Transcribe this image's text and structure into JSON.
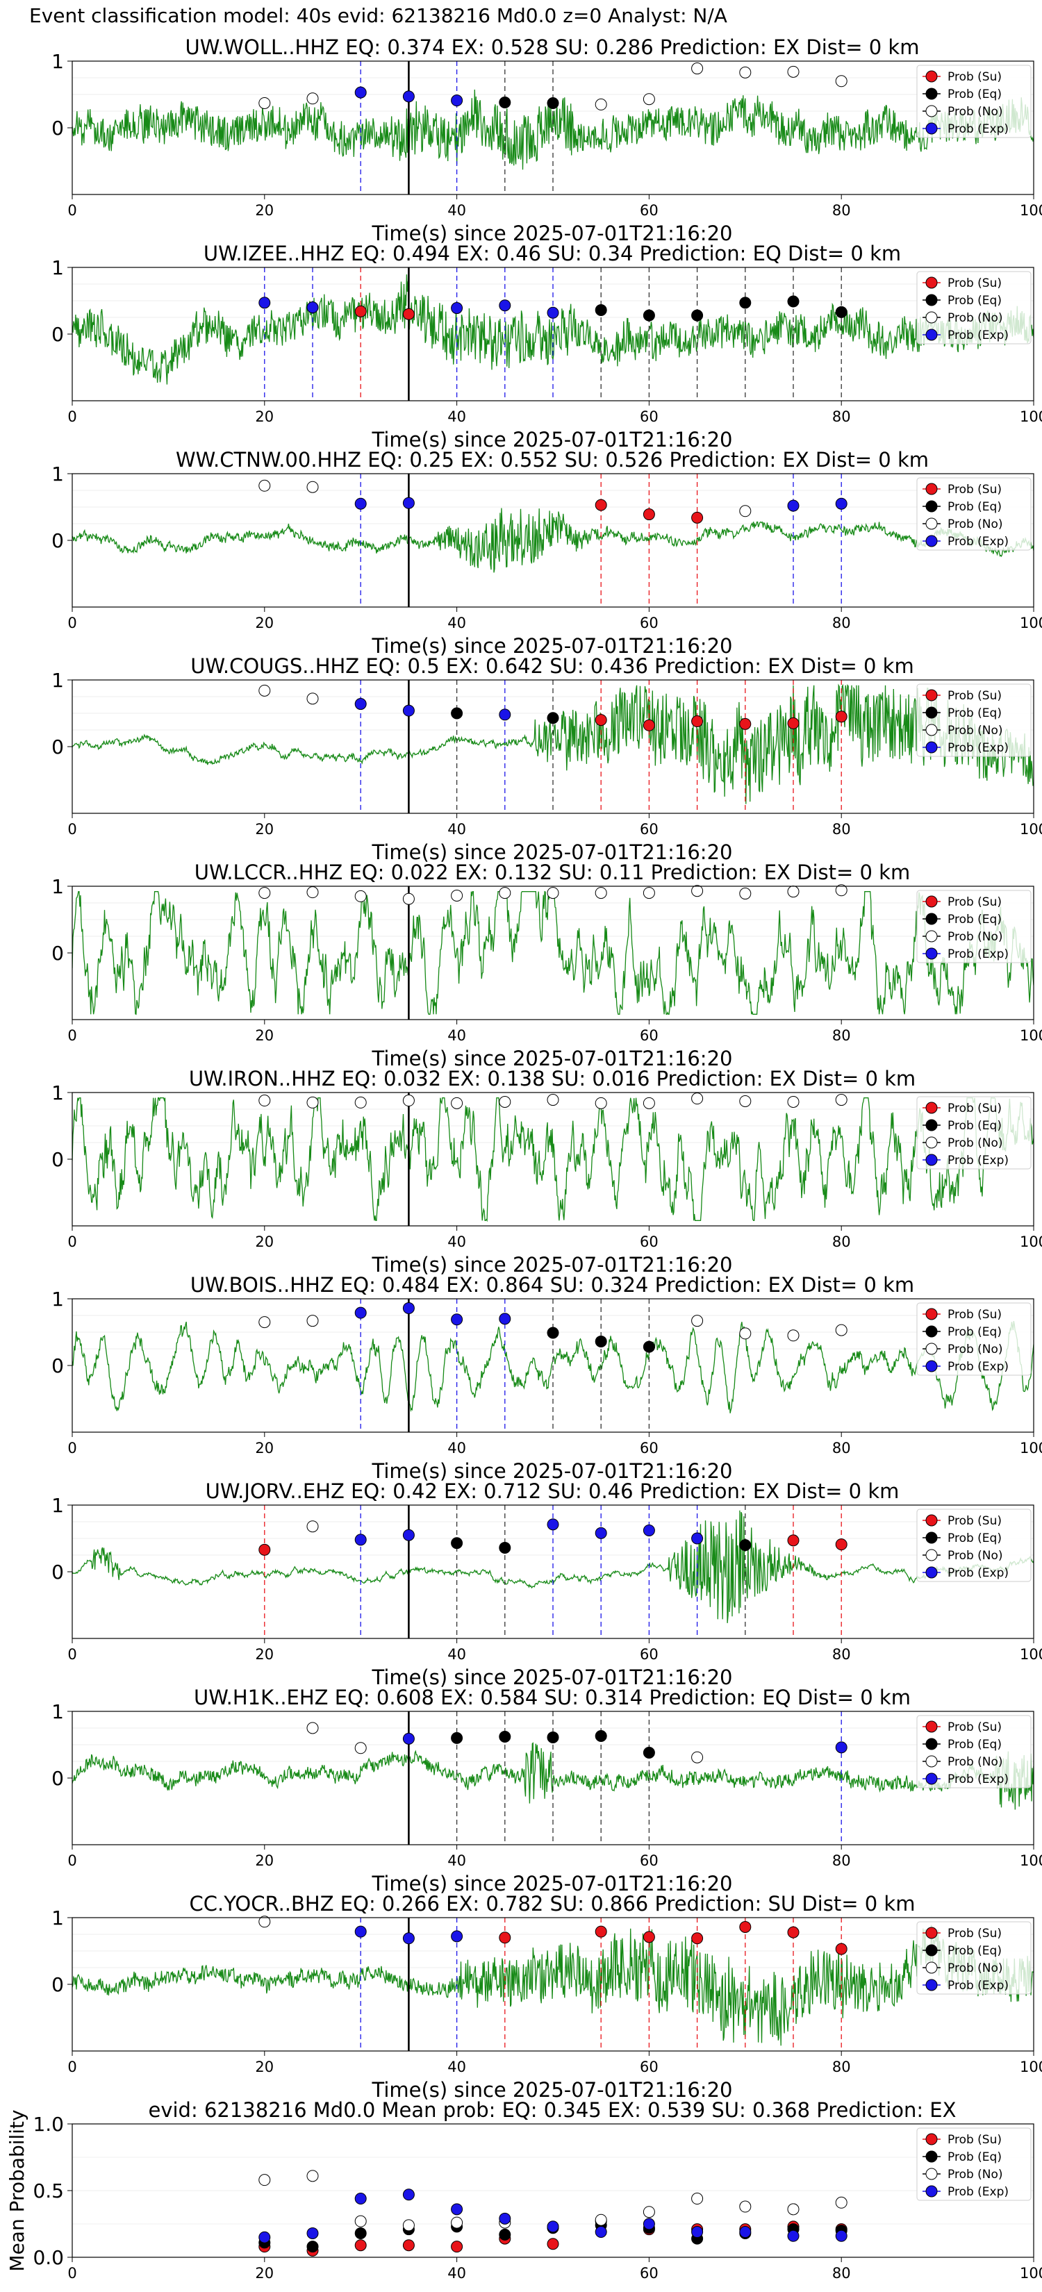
{
  "figure": {
    "suptitle": "Event classification model: 40s evid: 62138216 Md0.0 z=0 Analyst: N/A",
    "xlabel": "Time(s) since 2025-07-01T21:16:20",
    "legend": [
      "Prob (Su)",
      "Prob (Eq)",
      "Prob (No)",
      "Prob (Exp)"
    ],
    "colors": {
      "su": "#e8141a",
      "eq": "#000000",
      "no": "#ffffff",
      "exp": "#1a14e8",
      "waveform": "#178a17"
    }
  },
  "chart_data": [
    {
      "type": "line",
      "station": "UW.WOLL..HHZ",
      "title": "UW.WOLL..HHZ   EQ: 0.374  EX: 0.528  SU: 0.286   Prediction: EX    Dist= 0 km",
      "xlim": [
        0,
        100
      ],
      "ylim": [
        -1,
        1
      ],
      "xticks": [
        0,
        20,
        40,
        60,
        80,
        100
      ],
      "yticks": [
        0,
        1
      ],
      "event_line": 35,
      "waveform_style": "noisy",
      "points": [
        {
          "x": 20,
          "y": 0.37,
          "cls": "no"
        },
        {
          "x": 25,
          "y": 0.44,
          "cls": "no"
        },
        {
          "x": 30,
          "y": 0.53,
          "cls": "exp"
        },
        {
          "x": 35,
          "y": 0.47,
          "cls": "exp"
        },
        {
          "x": 40,
          "y": 0.41,
          "cls": "exp"
        },
        {
          "x": 45,
          "y": 0.38,
          "cls": "eq"
        },
        {
          "x": 50,
          "y": 0.37,
          "cls": "eq"
        },
        {
          "x": 55,
          "y": 0.35,
          "cls": "no"
        },
        {
          "x": 60,
          "y": 0.43,
          "cls": "no"
        },
        {
          "x": 65,
          "y": 0.89,
          "cls": "no"
        },
        {
          "x": 70,
          "y": 0.83,
          "cls": "no"
        },
        {
          "x": 75,
          "y": 0.84,
          "cls": "no"
        },
        {
          "x": 80,
          "y": 0.7,
          "cls": "no"
        }
      ]
    },
    {
      "type": "line",
      "station": "UW.IZEE..HHZ",
      "title": "UW.IZEE..HHZ   EQ: 0.494  EX: 0.46  SU: 0.34   Prediction: EQ    Dist= 0 km",
      "xlim": [
        0,
        100
      ],
      "ylim": [
        -1,
        1
      ],
      "xticks": [
        0,
        20,
        40,
        60,
        80,
        100
      ],
      "yticks": [
        0,
        1
      ],
      "event_line": 35,
      "waveform_style": "noisy",
      "points": [
        {
          "x": 20,
          "y": 0.47,
          "cls": "exp"
        },
        {
          "x": 25,
          "y": 0.4,
          "cls": "exp"
        },
        {
          "x": 30,
          "y": 0.34,
          "cls": "su"
        },
        {
          "x": 35,
          "y": 0.3,
          "cls": "su"
        },
        {
          "x": 40,
          "y": 0.39,
          "cls": "exp"
        },
        {
          "x": 45,
          "y": 0.43,
          "cls": "exp"
        },
        {
          "x": 50,
          "y": 0.32,
          "cls": "exp"
        },
        {
          "x": 55,
          "y": 0.36,
          "cls": "eq"
        },
        {
          "x": 60,
          "y": 0.28,
          "cls": "eq"
        },
        {
          "x": 65,
          "y": 0.28,
          "cls": "eq"
        },
        {
          "x": 70,
          "y": 0.47,
          "cls": "eq"
        },
        {
          "x": 75,
          "y": 0.49,
          "cls": "eq"
        },
        {
          "x": 80,
          "y": 0.33,
          "cls": "eq"
        }
      ]
    },
    {
      "type": "line",
      "station": "WW.CTNW.00.HHZ",
      "title": "WW.CTNW.00.HHZ   EQ: 0.25  EX: 0.552  SU: 0.526   Prediction: EX    Dist= 0 km",
      "xlim": [
        0,
        100
      ],
      "ylim": [
        -1,
        1
      ],
      "xticks": [
        0,
        20,
        40,
        60,
        80,
        100
      ],
      "yticks": [
        0,
        1
      ],
      "event_line": 35,
      "waveform_style": "quiet",
      "points": [
        {
          "x": 20,
          "y": 0.82,
          "cls": "no"
        },
        {
          "x": 25,
          "y": 0.8,
          "cls": "no"
        },
        {
          "x": 30,
          "y": 0.55,
          "cls": "exp"
        },
        {
          "x": 35,
          "y": 0.56,
          "cls": "exp"
        },
        {
          "x": 55,
          "y": 0.53,
          "cls": "su"
        },
        {
          "x": 60,
          "y": 0.39,
          "cls": "su"
        },
        {
          "x": 65,
          "y": 0.34,
          "cls": "su"
        },
        {
          "x": 70,
          "y": 0.44,
          "cls": "no"
        },
        {
          "x": 75,
          "y": 0.52,
          "cls": "exp"
        },
        {
          "x": 80,
          "y": 0.55,
          "cls": "exp"
        }
      ]
    },
    {
      "type": "line",
      "station": "UW.COUGS..HHZ",
      "title": "UW.COUGS..HHZ   EQ: 0.5  EX: 0.642  SU: 0.436   Prediction: EX    Dist= 0 km",
      "xlim": [
        0,
        100
      ],
      "ylim": [
        -1,
        1
      ],
      "xticks": [
        0,
        20,
        40,
        60,
        80,
        100
      ],
      "yticks": [
        0,
        1
      ],
      "event_line": 35,
      "waveform_style": "burst-late",
      "points": [
        {
          "x": 20,
          "y": 0.84,
          "cls": "no"
        },
        {
          "x": 25,
          "y": 0.72,
          "cls": "no"
        },
        {
          "x": 30,
          "y": 0.64,
          "cls": "exp"
        },
        {
          "x": 35,
          "y": 0.54,
          "cls": "exp"
        },
        {
          "x": 40,
          "y": 0.5,
          "cls": "eq"
        },
        {
          "x": 45,
          "y": 0.48,
          "cls": "exp"
        },
        {
          "x": 50,
          "y": 0.43,
          "cls": "eq"
        },
        {
          "x": 55,
          "y": 0.4,
          "cls": "su"
        },
        {
          "x": 60,
          "y": 0.32,
          "cls": "su"
        },
        {
          "x": 65,
          "y": 0.38,
          "cls": "su"
        },
        {
          "x": 70,
          "y": 0.34,
          "cls": "su"
        },
        {
          "x": 75,
          "y": 0.35,
          "cls": "su"
        },
        {
          "x": 80,
          "y": 0.45,
          "cls": "su"
        }
      ]
    },
    {
      "type": "line",
      "station": "UW.LCCR..HHZ",
      "title": "UW.LCCR..HHZ   EQ: 0.022  EX: 0.132  SU: 0.11   Prediction: EX    Dist= 0 km",
      "xlim": [
        0,
        100
      ],
      "ylim": [
        -1,
        1
      ],
      "xticks": [
        0,
        20,
        40,
        60,
        80,
        100
      ],
      "yticks": [
        0,
        1
      ],
      "event_line": 35,
      "waveform_style": "loud",
      "points": [
        {
          "x": 20,
          "y": 0.9,
          "cls": "no"
        },
        {
          "x": 25,
          "y": 0.91,
          "cls": "no"
        },
        {
          "x": 30,
          "y": 0.85,
          "cls": "no"
        },
        {
          "x": 35,
          "y": 0.81,
          "cls": "no"
        },
        {
          "x": 40,
          "y": 0.86,
          "cls": "no"
        },
        {
          "x": 45,
          "y": 0.9,
          "cls": "no"
        },
        {
          "x": 50,
          "y": 0.9,
          "cls": "no"
        },
        {
          "x": 55,
          "y": 0.9,
          "cls": "no"
        },
        {
          "x": 60,
          "y": 0.9,
          "cls": "no"
        },
        {
          "x": 65,
          "y": 0.93,
          "cls": "no"
        },
        {
          "x": 70,
          "y": 0.89,
          "cls": "no"
        },
        {
          "x": 75,
          "y": 0.92,
          "cls": "no"
        },
        {
          "x": 80,
          "y": 0.94,
          "cls": "no"
        }
      ]
    },
    {
      "type": "line",
      "station": "UW.IRON..HHZ",
      "title": "UW.IRON..HHZ   EQ: 0.032  EX: 0.138  SU: 0.016   Prediction: EX    Dist= 0 km",
      "xlim": [
        0,
        100
      ],
      "ylim": [
        -1,
        1
      ],
      "xticks": [
        0,
        20,
        40,
        60,
        80,
        100
      ],
      "yticks": [
        0,
        1
      ],
      "event_line": 35,
      "waveform_style": "loud",
      "points": [
        {
          "x": 20,
          "y": 0.88,
          "cls": "no"
        },
        {
          "x": 25,
          "y": 0.85,
          "cls": "no"
        },
        {
          "x": 30,
          "y": 0.85,
          "cls": "no"
        },
        {
          "x": 35,
          "y": 0.88,
          "cls": "no"
        },
        {
          "x": 40,
          "y": 0.84,
          "cls": "no"
        },
        {
          "x": 45,
          "y": 0.86,
          "cls": "no"
        },
        {
          "x": 50,
          "y": 0.89,
          "cls": "no"
        },
        {
          "x": 55,
          "y": 0.84,
          "cls": "no"
        },
        {
          "x": 60,
          "y": 0.84,
          "cls": "no"
        },
        {
          "x": 65,
          "y": 0.91,
          "cls": "no"
        },
        {
          "x": 70,
          "y": 0.87,
          "cls": "no"
        },
        {
          "x": 75,
          "y": 0.86,
          "cls": "no"
        },
        {
          "x": 80,
          "y": 0.89,
          "cls": "no"
        }
      ]
    },
    {
      "type": "line",
      "station": "UW.BOIS..HHZ",
      "title": "UW.BOIS..HHZ   EQ: 0.484  EX: 0.864  SU: 0.324   Prediction: EX    Dist= 0 km",
      "xlim": [
        0,
        100
      ],
      "ylim": [
        -1,
        1
      ],
      "xticks": [
        0,
        20,
        40,
        60,
        80,
        100
      ],
      "yticks": [
        0,
        1
      ],
      "event_line": 35,
      "waveform_style": "wavy",
      "points": [
        {
          "x": 20,
          "y": 0.65,
          "cls": "no"
        },
        {
          "x": 25,
          "y": 0.67,
          "cls": "no"
        },
        {
          "x": 30,
          "y": 0.79,
          "cls": "exp"
        },
        {
          "x": 35,
          "y": 0.86,
          "cls": "exp"
        },
        {
          "x": 40,
          "y": 0.69,
          "cls": "exp"
        },
        {
          "x": 45,
          "y": 0.7,
          "cls": "exp"
        },
        {
          "x": 50,
          "y": 0.49,
          "cls": "eq"
        },
        {
          "x": 55,
          "y": 0.36,
          "cls": "eq"
        },
        {
          "x": 60,
          "y": 0.28,
          "cls": "eq"
        },
        {
          "x": 65,
          "y": 0.67,
          "cls": "no"
        },
        {
          "x": 70,
          "y": 0.48,
          "cls": "no"
        },
        {
          "x": 75,
          "y": 0.45,
          "cls": "no"
        },
        {
          "x": 80,
          "y": 0.53,
          "cls": "no"
        }
      ]
    },
    {
      "type": "line",
      "station": "UW.JORV..EHZ",
      "title": "UW.JORV..EHZ   EQ: 0.42  EX: 0.712  SU: 0.46   Prediction: EX    Dist= 0 km",
      "xlim": [
        0,
        100
      ],
      "ylim": [
        -1,
        1
      ],
      "xticks": [
        0,
        20,
        40,
        60,
        80,
        100
      ],
      "yticks": [
        0,
        1
      ],
      "event_line": 35,
      "waveform_style": "burst-65",
      "points": [
        {
          "x": 20,
          "y": 0.33,
          "cls": "su"
        },
        {
          "x": 25,
          "y": 0.68,
          "cls": "no"
        },
        {
          "x": 30,
          "y": 0.48,
          "cls": "exp"
        },
        {
          "x": 35,
          "y": 0.55,
          "cls": "exp"
        },
        {
          "x": 40,
          "y": 0.43,
          "cls": "eq"
        },
        {
          "x": 45,
          "y": 0.36,
          "cls": "eq"
        },
        {
          "x": 50,
          "y": 0.71,
          "cls": "exp"
        },
        {
          "x": 55,
          "y": 0.58,
          "cls": "exp"
        },
        {
          "x": 60,
          "y": 0.62,
          "cls": "exp"
        },
        {
          "x": 65,
          "y": 0.5,
          "cls": "exp"
        },
        {
          "x": 70,
          "y": 0.4,
          "cls": "eq"
        },
        {
          "x": 75,
          "y": 0.47,
          "cls": "su"
        },
        {
          "x": 80,
          "y": 0.41,
          "cls": "su"
        }
      ]
    },
    {
      "type": "line",
      "station": "UW.H1K..EHZ",
      "title": "UW.H1K..EHZ   EQ: 0.608  EX: 0.584  SU: 0.314   Prediction: EQ    Dist= 0 km",
      "xlim": [
        0,
        100
      ],
      "ylim": [
        -1,
        1
      ],
      "xticks": [
        0,
        20,
        40,
        60,
        80,
        100
      ],
      "yticks": [
        0,
        1
      ],
      "event_line": 35,
      "waveform_style": "quiet-spike",
      "points": [
        {
          "x": 25,
          "y": 0.75,
          "cls": "no"
        },
        {
          "x": 30,
          "y": 0.45,
          "cls": "no"
        },
        {
          "x": 35,
          "y": 0.59,
          "cls": "exp"
        },
        {
          "x": 40,
          "y": 0.6,
          "cls": "eq"
        },
        {
          "x": 45,
          "y": 0.62,
          "cls": "eq"
        },
        {
          "x": 50,
          "y": 0.61,
          "cls": "eq"
        },
        {
          "x": 55,
          "y": 0.63,
          "cls": "eq"
        },
        {
          "x": 60,
          "y": 0.38,
          "cls": "eq"
        },
        {
          "x": 65,
          "y": 0.31,
          "cls": "no"
        },
        {
          "x": 80,
          "y": 0.46,
          "cls": "exp"
        }
      ]
    },
    {
      "type": "line",
      "station": "CC.YOCR..BHZ",
      "title": "CC.YOCR..BHZ   EQ: 0.266  EX: 0.782  SU: 0.866   Prediction: SU    Dist= 0 km",
      "xlim": [
        0,
        100
      ],
      "ylim": [
        -1,
        1
      ],
      "xticks": [
        0,
        20,
        40,
        60,
        80,
        100
      ],
      "yticks": [
        0,
        1
      ],
      "event_line": 35,
      "waveform_style": "medium-late",
      "points": [
        {
          "x": 20,
          "y": 0.94,
          "cls": "no"
        },
        {
          "x": 30,
          "y": 0.79,
          "cls": "exp"
        },
        {
          "x": 35,
          "y": 0.69,
          "cls": "exp"
        },
        {
          "x": 40,
          "y": 0.72,
          "cls": "exp"
        },
        {
          "x": 45,
          "y": 0.7,
          "cls": "su"
        },
        {
          "x": 55,
          "y": 0.79,
          "cls": "su"
        },
        {
          "x": 60,
          "y": 0.71,
          "cls": "su"
        },
        {
          "x": 65,
          "y": 0.69,
          "cls": "su"
        },
        {
          "x": 70,
          "y": 0.86,
          "cls": "su"
        },
        {
          "x": 75,
          "y": 0.78,
          "cls": "su"
        },
        {
          "x": 80,
          "y": 0.53,
          "cls": "su"
        }
      ]
    },
    {
      "type": "scatter",
      "station": "mean",
      "title": "evid: 62138216  Md0.0   Mean prob:   EQ: 0.345  EX: 0.539  SU: 0.368   Prediction: EX",
      "ylabel": "Mean Probability",
      "xlim": [
        0,
        100
      ],
      "ylim": [
        0,
        1
      ],
      "xticks": [
        0,
        20,
        40,
        60,
        80,
        100
      ],
      "yticks": [
        0.0,
        0.5,
        1.0
      ],
      "x": [
        20,
        25,
        30,
        35,
        40,
        45,
        50,
        55,
        60,
        65,
        70,
        75,
        80
      ],
      "series": [
        {
          "name": "Prob (Su)",
          "cls": "su",
          "values": [
            0.08,
            0.05,
            0.09,
            0.09,
            0.08,
            0.14,
            0.1,
            0.27,
            0.21,
            0.21,
            0.21,
            0.23,
            0.21
          ]
        },
        {
          "name": "Prob (Eq)",
          "cls": "eq",
          "values": [
            0.11,
            0.08,
            0.18,
            0.21,
            0.23,
            0.17,
            0.22,
            0.24,
            0.22,
            0.14,
            0.18,
            0.21,
            0.2
          ]
        },
        {
          "name": "Prob (No)",
          "cls": "no",
          "values": [
            0.58,
            0.61,
            0.27,
            0.24,
            0.26,
            0.26,
            0.23,
            0.28,
            0.34,
            0.44,
            0.38,
            0.36,
            0.41
          ]
        },
        {
          "name": "Prob (Exp)",
          "cls": "exp",
          "values": [
            0.15,
            0.18,
            0.44,
            0.47,
            0.36,
            0.29,
            0.23,
            0.19,
            0.25,
            0.19,
            0.19,
            0.16,
            0.16
          ]
        }
      ]
    }
  ]
}
